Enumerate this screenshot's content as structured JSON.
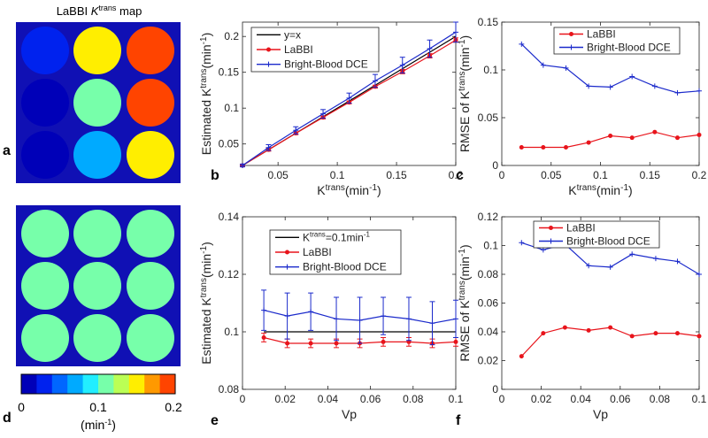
{
  "figure_title": {
    "prefix": "LaBBI ",
    "k": "K",
    "sup": "trans",
    "suffix": " map"
  },
  "panel_labels": {
    "a": "a",
    "b": "b",
    "c": "c",
    "d": "d",
    "e": "e",
    "f": "f"
  },
  "colors": {
    "labbi": "#e8141b",
    "bright_blood": "#1b2acb",
    "reference": "#000000",
    "map_background": "#1010b4",
    "colormap": [
      "#0000b8",
      "#0022ee",
      "#0066ff",
      "#00aaff",
      "#22eeff",
      "#77ffaa",
      "#bbff55",
      "#ffee00",
      "#ff9900",
      "#ff4400"
    ]
  },
  "colorbar": {
    "ticks": [
      "0",
      "0.1",
      "0.2"
    ],
    "unit": {
      "base": "(min",
      "sup": "-1",
      "close": ")"
    }
  },
  "maps": {
    "top_grid_values": [
      [
        0.04,
        0.14,
        0.196
      ],
      [
        0.02,
        0.11,
        0.18
      ],
      [
        0.01,
        0.07,
        0.155
      ]
    ],
    "bottom_grid_values": [
      [
        0.1,
        0.1,
        0.1
      ],
      [
        0.1,
        0.1,
        0.1
      ],
      [
        0.1,
        0.1,
        0.1
      ]
    ]
  },
  "chart_data": [
    {
      "id": "b",
      "type": "line",
      "xlabel": {
        "base": "K",
        "sup": "trans",
        "tail": "(min",
        "sup2": "-1",
        "close": ")"
      },
      "ylabel": {
        "base": "Estimated K",
        "sup": "trans",
        "tail": "(min",
        "sup2": "-1",
        "close": ")"
      },
      "xlim": [
        0.02,
        0.2
      ],
      "ylim": [
        0.02,
        0.22
      ],
      "xticks": [
        0.05,
        0.1,
        0.15,
        0.2
      ],
      "xtick_labels": [
        "0.05",
        "0.1",
        "0.15",
        "0.2"
      ],
      "yticks": [
        0.05,
        0.1,
        0.15,
        0.2
      ],
      "ytick_labels": [
        "0.05",
        "0.1",
        "0.15",
        "0.2"
      ],
      "legend": "top-left",
      "series": [
        {
          "name": "y=x",
          "legend_label": {
            "base": "y=x"
          },
          "color": "reference",
          "marker": "none",
          "x": [
            0.02,
            0.2
          ],
          "y": [
            0.02,
            0.2
          ]
        },
        {
          "name": "LaBBI",
          "legend_label": {
            "base": "LaBBI"
          },
          "color": "labbi",
          "marker": "dot",
          "x": [
            0.02,
            0.042,
            0.065,
            0.088,
            0.11,
            0.132,
            0.155,
            0.178,
            0.2
          ],
          "y": [
            0.02,
            0.042,
            0.065,
            0.087,
            0.108,
            0.13,
            0.151,
            0.173,
            0.195
          ],
          "err": [
            0.001,
            0.002,
            0.002,
            0.002,
            0.002,
            0.002,
            0.003,
            0.003,
            0.003
          ]
        },
        {
          "name": "Bright-Blood DCE",
          "legend_label": {
            "base": "Bright-Blood DCE"
          },
          "color": "bright_blood",
          "marker": "plus",
          "x": [
            0.02,
            0.042,
            0.065,
            0.088,
            0.11,
            0.132,
            0.155,
            0.178,
            0.2
          ],
          "y": [
            0.02,
            0.045,
            0.069,
            0.092,
            0.114,
            0.138,
            0.16,
            0.183,
            0.206
          ],
          "err": [
            0.002,
            0.004,
            0.005,
            0.006,
            0.007,
            0.009,
            0.011,
            0.012,
            0.014
          ]
        }
      ]
    },
    {
      "id": "c",
      "type": "line",
      "xlabel": {
        "base": "K",
        "sup": "trans",
        "tail": "(min",
        "sup2": "-1",
        "close": ")"
      },
      "ylabel": {
        "base": "RMSE of K",
        "sup": "trans",
        "tail": "(min",
        "sup2": "-1",
        "close": ")"
      },
      "xlim": [
        0,
        0.2
      ],
      "ylim": [
        0,
        0.15
      ],
      "xticks": [
        0,
        0.05,
        0.1,
        0.15,
        0.2
      ],
      "xtick_labels": [
        "0",
        "0.05",
        "0.1",
        "0.15",
        "0.2"
      ],
      "yticks": [
        0,
        0.05,
        0.1,
        0.15
      ],
      "ytick_labels": [
        "0",
        "0.05",
        "0.1",
        "0.15"
      ],
      "legend": "top-right",
      "series": [
        {
          "name": "LaBBI",
          "legend_label": {
            "base": "LaBBI"
          },
          "color": "labbi",
          "marker": "dot",
          "x": [
            0.02,
            0.042,
            0.065,
            0.088,
            0.11,
            0.132,
            0.155,
            0.178,
            0.2
          ],
          "y": [
            0.019,
            0.019,
            0.019,
            0.024,
            0.031,
            0.029,
            0.035,
            0.029,
            0.032
          ]
        },
        {
          "name": "Bright-Blood DCE",
          "legend_label": {
            "base": "Bright-Blood DCE"
          },
          "color": "bright_blood",
          "marker": "plus",
          "x": [
            0.02,
            0.042,
            0.065,
            0.088,
            0.11,
            0.132,
            0.155,
            0.178,
            0.2
          ],
          "y": [
            0.127,
            0.105,
            0.102,
            0.083,
            0.082,
            0.093,
            0.083,
            0.076,
            0.078
          ]
        }
      ]
    },
    {
      "id": "e",
      "type": "line",
      "xlabel": {
        "base": "Vp"
      },
      "ylabel": {
        "base": "Estimated K",
        "sup": "trans",
        "tail": "(min",
        "sup2": "-1",
        "close": ")"
      },
      "xlim": [
        0,
        0.1
      ],
      "ylim": [
        0.08,
        0.14
      ],
      "xticks": [
        0,
        0.02,
        0.04,
        0.06,
        0.08,
        0.1
      ],
      "xtick_labels": [
        "0",
        "0.02",
        "0.04",
        "0.06",
        "0.08",
        "0.1"
      ],
      "yticks": [
        0.08,
        0.1,
        0.12,
        0.14
      ],
      "ytick_labels": [
        "0.08",
        "0.1",
        "0.12",
        "0.14"
      ],
      "legend": "top-center",
      "series": [
        {
          "name": "Ktrans=0.1min-1",
          "legend_label": {
            "base": "K",
            "sup": "trans",
            "tail": "=0.1min",
            "sup2": "-1"
          },
          "color": "reference",
          "marker": "none",
          "x": [
            0.01,
            0.1
          ],
          "y": [
            0.1,
            0.1
          ]
        },
        {
          "name": "LaBBI",
          "legend_label": {
            "base": "LaBBI"
          },
          "color": "labbi",
          "marker": "dot",
          "x": [
            0.01,
            0.021,
            0.032,
            0.044,
            0.055,
            0.066,
            0.078,
            0.089,
            0.1
          ],
          "y": [
            0.098,
            0.096,
            0.096,
            0.096,
            0.096,
            0.0965,
            0.0965,
            0.096,
            0.0965
          ],
          "err": [
            0.0015,
            0.0015,
            0.0015,
            0.0015,
            0.0015,
            0.0015,
            0.0015,
            0.0015,
            0.0015
          ]
        },
        {
          "name": "Bright-Blood DCE",
          "legend_label": {
            "base": "Bright-Blood DCE"
          },
          "color": "bright_blood",
          "marker": "plus",
          "x": [
            0.01,
            0.021,
            0.032,
            0.044,
            0.055,
            0.066,
            0.078,
            0.089,
            0.1
          ],
          "y": [
            0.1075,
            0.1055,
            0.107,
            0.1045,
            0.104,
            0.1055,
            0.1045,
            0.103,
            0.1045
          ],
          "err": [
            0.007,
            0.008,
            0.0065,
            0.0075,
            0.008,
            0.0065,
            0.0075,
            0.0075,
            0.0065
          ]
        }
      ]
    },
    {
      "id": "f",
      "type": "line",
      "xlabel": {
        "base": "Vp"
      },
      "ylabel": {
        "base": "RMSE of K",
        "sup": "trans",
        "tail": "(min",
        "sup2": "-1",
        "close": ")"
      },
      "xlim": [
        0,
        0.1
      ],
      "ylim": [
        0,
        0.12
      ],
      "xticks": [
        0,
        0.02,
        0.04,
        0.06,
        0.08,
        0.1
      ],
      "xtick_labels": [
        "0",
        "0.02",
        "0.04",
        "0.06",
        "0.08",
        "0.1"
      ],
      "yticks": [
        0,
        0.02,
        0.04,
        0.06,
        0.08,
        0.1,
        0.12
      ],
      "ytick_labels": [
        "0",
        "0.02",
        "0.04",
        "0.06",
        "0.08",
        "0.1",
        "0.12"
      ],
      "legend": "top-center",
      "series": [
        {
          "name": "LaBBI",
          "legend_label": {
            "base": "LaBBI"
          },
          "color": "labbi",
          "marker": "dot",
          "x": [
            0.01,
            0.021,
            0.032,
            0.044,
            0.055,
            0.066,
            0.078,
            0.089,
            0.1
          ],
          "y": [
            0.023,
            0.039,
            0.043,
            0.041,
            0.043,
            0.037,
            0.039,
            0.039,
            0.037
          ]
        },
        {
          "name": "Bright-Blood DCE",
          "legend_label": {
            "base": "Bright-Blood DCE"
          },
          "color": "bright_blood",
          "marker": "plus",
          "x": [
            0.01,
            0.021,
            0.032,
            0.044,
            0.055,
            0.066,
            0.078,
            0.089,
            0.1
          ],
          "y": [
            0.102,
            0.097,
            0.101,
            0.086,
            0.085,
            0.094,
            0.091,
            0.089,
            0.08
          ]
        }
      ]
    }
  ]
}
